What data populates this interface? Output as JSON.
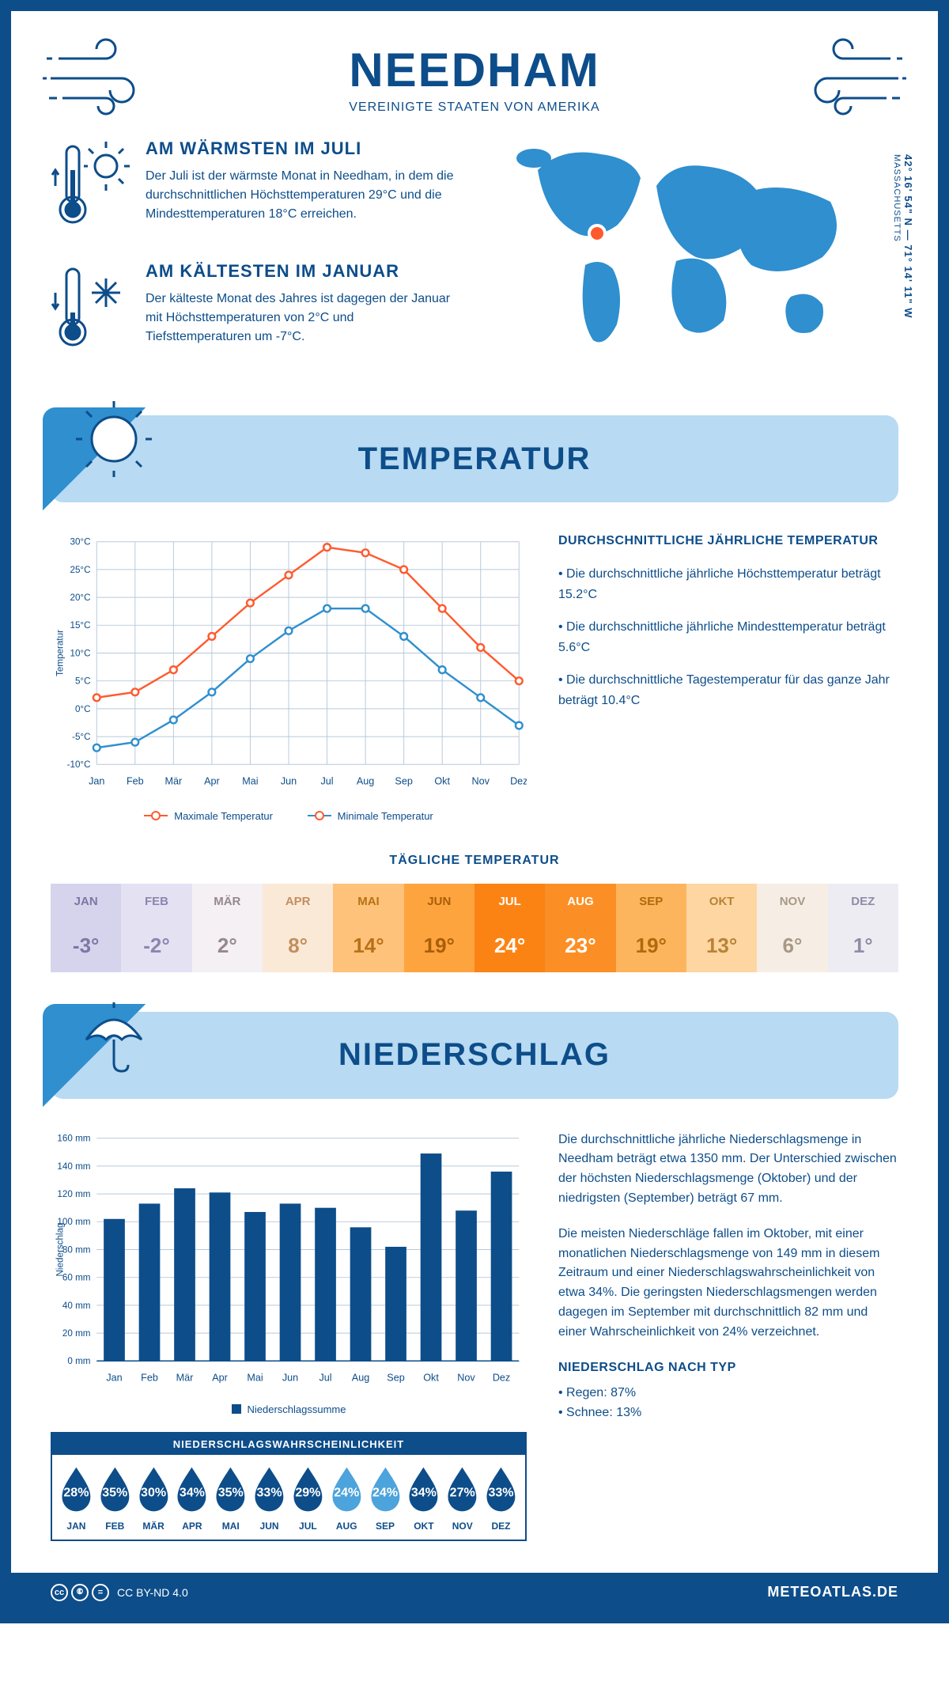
{
  "header": {
    "city": "NEEDHAM",
    "country": "VEREINIGTE STAATEN VON AMERIKA"
  },
  "location": {
    "coords": "42° 16' 54\" N — 71° 14' 11\" W",
    "state": "MASSACHUSETTS",
    "marker_color": "#ff5a2e"
  },
  "intro": {
    "warm": {
      "title": "AM WÄRMSTEN IM JULI",
      "text": "Der Juli ist der wärmste Monat in Needham, in dem die durchschnittlichen Höchsttemperaturen 29°C und die Mindesttemperaturen 18°C erreichen."
    },
    "cold": {
      "title": "AM KÄLTESTEN IM JANUAR",
      "text": "Der kälteste Monat des Jahres ist dagegen der Januar mit Höchsttemperaturen von 2°C und Tiefsttemperaturen um -7°C."
    }
  },
  "banners": {
    "temperature": "TEMPERATUR",
    "precipitation": "NIEDERSCHLAG"
  },
  "temp_chart": {
    "months": [
      "Jan",
      "Feb",
      "Mär",
      "Apr",
      "Mai",
      "Jun",
      "Jul",
      "Aug",
      "Sep",
      "Okt",
      "Nov",
      "Dez"
    ],
    "max_series": [
      2,
      3,
      7,
      13,
      19,
      24,
      29,
      28,
      25,
      18,
      11,
      5
    ],
    "min_series": [
      -7,
      -6,
      -2,
      3,
      9,
      14,
      18,
      18,
      13,
      7,
      2,
      -3
    ],
    "max_color": "#ff5a2e",
    "min_color": "#2f8fcf",
    "ylabel": "Temperatur",
    "ylim": [
      -10,
      30
    ],
    "ytick_step": 5,
    "grid_color": "#b8c9db",
    "legend_max": "Maximale Temperatur",
    "legend_min": "Minimale Temperatur"
  },
  "temp_text": {
    "title": "DURCHSCHNITTLICHE JÄHRLICHE TEMPERATUR",
    "l1": "• Die durchschnittliche jährliche Höchsttemperatur beträgt 15.2°C",
    "l2": "• Die durchschnittliche jährliche Mindesttemperatur beträgt 5.6°C",
    "l3": "• Die durchschnittliche Tagestemperatur für das ganze Jahr beträgt 10.4°C"
  },
  "daily_temp": {
    "title": "TÄGLICHE TEMPERATUR",
    "months": [
      "JAN",
      "FEB",
      "MÄR",
      "APR",
      "MAI",
      "JUN",
      "JUL",
      "AUG",
      "SEP",
      "OKT",
      "NOV",
      "DEZ"
    ],
    "values": [
      "-3°",
      "-2°",
      "2°",
      "8°",
      "14°",
      "19°",
      "24°",
      "23°",
      "19°",
      "13°",
      "6°",
      "1°"
    ],
    "bg_colors": [
      "#d6d4ec",
      "#e4e2f2",
      "#f4f0f4",
      "#fbe9d8",
      "#fec27a",
      "#fda43f",
      "#fb8314",
      "#fb8f26",
      "#fdb55d",
      "#fed6a2",
      "#f6eee5",
      "#eeecf3"
    ],
    "text_colors": [
      "#7b78a4",
      "#8b86af",
      "#97878e",
      "#c28f5c",
      "#b87116",
      "#a95e08",
      "#ffffff",
      "#ffffff",
      "#b1690a",
      "#b88336",
      "#a89985",
      "#8f8ca8"
    ]
  },
  "precip_chart": {
    "months": [
      "Jan",
      "Feb",
      "Mär",
      "Apr",
      "Mai",
      "Jun",
      "Jul",
      "Aug",
      "Sep",
      "Okt",
      "Nov",
      "Dez"
    ],
    "values": [
      102,
      113,
      124,
      121,
      107,
      113,
      110,
      96,
      82,
      149,
      108,
      136
    ],
    "ylabel": "Niederschlag",
    "ylim": [
      0,
      160
    ],
    "ytick_step": 20,
    "bar_color": "#0d4d8a",
    "grid_color": "#b8c9db",
    "legend": "Niederschlagssumme"
  },
  "precip_text": {
    "p1": "Die durchschnittliche jährliche Niederschlagsmenge in Needham beträgt etwa 1350 mm. Der Unterschied zwischen der höchsten Niederschlagsmenge (Oktober) und der niedrigsten (September) beträgt 67 mm.",
    "p2": "Die meisten Niederschläge fallen im Oktober, mit einer monatlichen Niederschlagsmenge von 149 mm in diesem Zeitraum und einer Niederschlagswahrscheinlichkeit von etwa 34%. Die geringsten Niederschlagsmengen werden dagegen im September mit durchschnittlich 82 mm und einer Wahrscheinlichkeit von 24% verzeichnet.",
    "type_title": "NIEDERSCHLAG NACH TYP",
    "rain": "• Regen: 87%",
    "snow": "• Schnee: 13%"
  },
  "precip_prob": {
    "title": "NIEDERSCHLAGSWAHRSCHEINLICHKEIT",
    "months": [
      "JAN",
      "FEB",
      "MÄR",
      "APR",
      "MAI",
      "JUN",
      "JUL",
      "AUG",
      "SEP",
      "OKT",
      "NOV",
      "DEZ"
    ],
    "values": [
      "28%",
      "35%",
      "30%",
      "34%",
      "35%",
      "33%",
      "29%",
      "24%",
      "24%",
      "34%",
      "27%",
      "33%"
    ],
    "colors": [
      "#0d4d8a",
      "#0d4d8a",
      "#0d4d8a",
      "#0d4d8a",
      "#0d4d8a",
      "#0d4d8a",
      "#0d4d8a",
      "#4da3db",
      "#4da3db",
      "#0d4d8a",
      "#0d4d8a",
      "#0d4d8a"
    ]
  },
  "footer": {
    "license": "CC BY-ND 4.0",
    "site": "METEOATLAS.DE"
  },
  "colors": {
    "primary": "#0d4d8a",
    "banner_bg": "#b8daf2",
    "map_fill": "#2f8fcf"
  }
}
